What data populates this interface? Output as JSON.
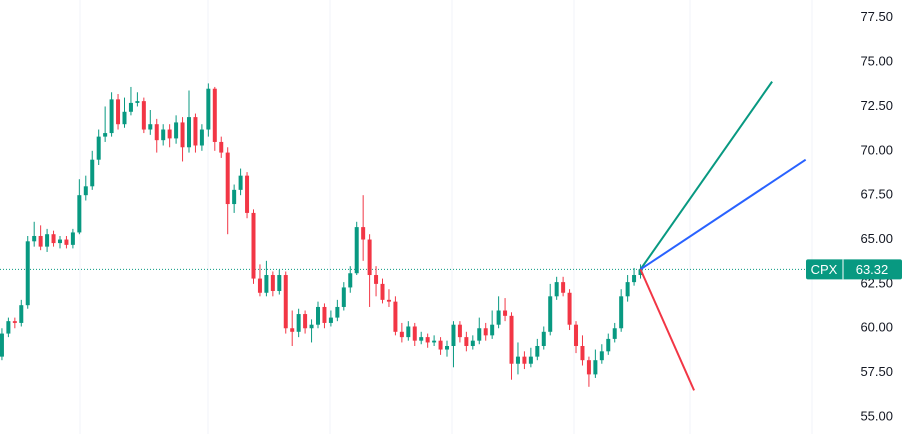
{
  "chart_data": {
    "type": "candlestick",
    "up_color": "#089981",
    "down_color": "#f23645",
    "open": [
      58.4,
      59.7,
      60.4,
      60.3,
      61.3,
      64.9,
      65.2,
      64.6,
      65.3,
      64.8,
      65.0,
      64.7,
      65.4,
      67.5,
      68.0,
      69.5,
      70.8,
      71.0,
      72.9,
      71.5,
      72.2,
      72.7,
      72.8,
      71.2,
      71.5,
      70.6,
      71.2,
      70.7,
      71.6,
      70.2,
      71.9,
      70.3,
      71.2,
      73.5,
      70.5,
      69.9,
      67.0,
      67.8,
      68.6,
      66.5,
      62.8,
      62.0,
      63.0,
      62.1,
      63.0,
      60.0,
      59.8,
      60.8,
      60.0,
      60.2,
      61.2,
      60.3,
      60.6,
      61.2,
      62.3,
      63.1,
      65.7,
      65.0,
      63.0,
      62.5,
      61.6,
      61.5,
      59.8,
      59.5,
      60.1,
      59.3,
      59.5,
      59.2,
      59.3,
      58.8,
      59.0,
      60.2,
      59.5,
      59.0,
      59.3,
      60.0,
      59.6,
      60.2,
      61.0,
      60.7,
      58.0,
      58.4,
      58.0,
      58.4,
      59.0,
      59.8,
      61.8,
      62.6,
      62.0,
      60.2,
      59.0,
      58.2,
      57.4,
      58.2,
      58.7,
      59.4,
      60.0,
      61.8,
      62.6,
      63.0
    ],
    "high": [
      60.0,
      60.6,
      60.6,
      61.6,
      65.2,
      66.0,
      65.8,
      65.6,
      65.5,
      65.2,
      65.2,
      65.6,
      68.4,
      68.6,
      70.0,
      71.2,
      72.5,
      73.3,
      73.2,
      73.0,
      73.6,
      73.3,
      73.0,
      72.3,
      71.8,
      71.5,
      71.5,
      72.0,
      71.9,
      73.4,
      72.1,
      71.5,
      73.8,
      73.6,
      70.8,
      70.2,
      68.1,
      69.0,
      68.8,
      66.7,
      63.6,
      63.8,
      63.2,
      63.3,
      63.2,
      61.0,
      61.1,
      61.0,
      60.5,
      61.5,
      61.4,
      61.0,
      61.6,
      62.6,
      63.5,
      66.0,
      67.5,
      65.3,
      63.5,
      62.8,
      62.2,
      61.8,
      60.3,
      60.4,
      60.3,
      59.8,
      59.7,
      59.6,
      59.5,
      59.3,
      60.4,
      60.4,
      59.8,
      59.6,
      60.6,
      60.3,
      61.0,
      61.8,
      61.7,
      60.9,
      59.2,
      58.7,
      58.9,
      59.4,
      60.1,
      62.5,
      62.9,
      62.9,
      62.2,
      60.4,
      59.6,
      58.4,
      58.8,
      59.1,
      59.7,
      60.3,
      62.2,
      63.0,
      63.4,
      63.6
    ],
    "low": [
      58.2,
      59.5,
      60.0,
      60.1,
      61.1,
      64.6,
      64.4,
      64.3,
      64.6,
      64.5,
      64.5,
      64.5,
      65.3,
      67.2,
      67.8,
      69.2,
      70.5,
      70.8,
      71.2,
      71.3,
      72.0,
      72.5,
      71.0,
      70.9,
      69.9,
      70.3,
      70.2,
      70.4,
      69.4,
      69.9,
      69.9,
      70.0,
      70.8,
      70.0,
      69.6,
      65.3,
      66.5,
      67.5,
      66.2,
      62.5,
      61.8,
      61.8,
      61.8,
      61.9,
      59.7,
      59.0,
      59.5,
      59.7,
      59.2,
      60.0,
      60.0,
      60.1,
      60.4,
      61.0,
      62.0,
      63.0,
      63.8,
      61.2,
      61.8,
      61.4,
      61.2,
      59.6,
      59.2,
      59.3,
      59.0,
      59.1,
      58.9,
      59.0,
      58.5,
      58.4,
      57.8,
      59.2,
      58.7,
      58.8,
      59.1,
      59.3,
      59.4,
      60.0,
      60.4,
      57.1,
      57.4,
      57.7,
      57.8,
      58.2,
      58.8,
      59.6,
      61.6,
      61.8,
      59.9,
      58.6,
      57.9,
      56.7,
      57.2,
      58.0,
      58.5,
      59.2,
      59.8,
      61.5,
      62.4,
      62.8
    ],
    "close": [
      59.7,
      60.4,
      60.3,
      61.3,
      64.9,
      65.2,
      64.6,
      65.3,
      64.8,
      65.0,
      64.7,
      65.4,
      67.5,
      68.0,
      69.5,
      70.8,
      71.0,
      72.9,
      71.5,
      72.2,
      72.7,
      72.8,
      71.2,
      71.5,
      70.6,
      71.2,
      70.7,
      71.6,
      70.2,
      71.9,
      70.3,
      71.2,
      73.5,
      70.5,
      69.9,
      67.0,
      67.8,
      68.6,
      66.5,
      62.8,
      62.0,
      63.0,
      62.1,
      63.0,
      60.0,
      59.8,
      60.8,
      60.0,
      60.2,
      61.2,
      60.3,
      60.6,
      61.2,
      62.3,
      63.1,
      65.7,
      65.0,
      63.0,
      62.5,
      61.6,
      61.5,
      59.8,
      59.5,
      60.1,
      59.3,
      59.5,
      59.2,
      59.3,
      58.8,
      59.0,
      60.2,
      59.5,
      59.0,
      59.3,
      60.0,
      59.6,
      60.2,
      61.0,
      60.7,
      58.0,
      58.4,
      58.0,
      58.4,
      59.0,
      59.8,
      61.8,
      62.6,
      62.0,
      60.2,
      59.0,
      58.2,
      57.4,
      58.2,
      58.7,
      59.4,
      60.0,
      61.8,
      62.6,
      63.0,
      63.32
    ],
    "xlim": [
      -0.3,
      130.7
    ],
    "ylim": [
      54.04,
      78.5
    ],
    "yticks": [
      {
        "value": 55,
        "label": "55.00"
      },
      {
        "value": 57.5,
        "label": "57.50"
      },
      {
        "value": 60,
        "label": "60.00"
      },
      {
        "value": 62.5,
        "label": "62.50"
      },
      {
        "value": 65,
        "label": "65.00"
      },
      {
        "value": 67.5,
        "label": "67.50"
      },
      {
        "value": 70,
        "label": "70.00"
      },
      {
        "value": 72.5,
        "label": "72.50"
      },
      {
        "value": 75,
        "label": "75.00"
      },
      {
        "value": 77.5,
        "label": "77.50"
      }
    ],
    "last_price": {
      "symbol": "CPX",
      "value": 63.32,
      "color": "#089981"
    },
    "projections": [
      {
        "color": "#089981",
        "x": [
          99,
          119.4
        ],
        "y": [
          63.32,
          73.9
        ]
      },
      {
        "color": "#2962ff",
        "x": [
          99,
          124.6
        ],
        "y": [
          63.32,
          69.5
        ]
      },
      {
        "color": "#f23645",
        "x": [
          99,
          107.3
        ],
        "y": [
          63.32,
          56.5
        ]
      }
    ]
  }
}
